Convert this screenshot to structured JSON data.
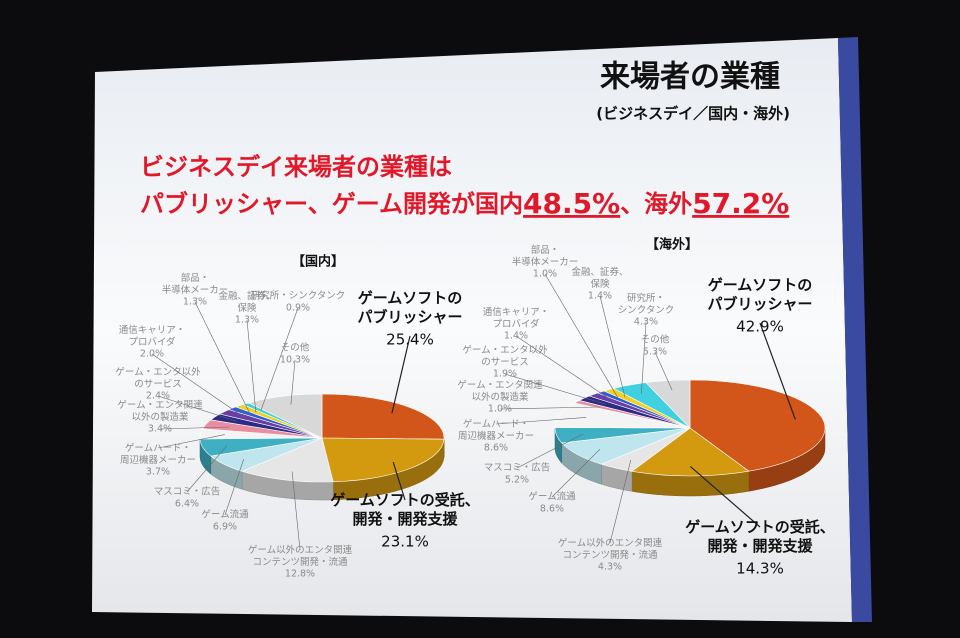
{
  "slide": {
    "title": "来場者の業種",
    "subtitle": "(ビジネスデイ／国内・海外)",
    "headline": [
      "ビジネスデイ来場者の業種は",
      "パブリッシャー、ゲーム開発が国内",
      "48.5%",
      "、海外",
      "57.2%"
    ]
  },
  "chart_data": [
    {
      "type": "pie",
      "title": "【国内】",
      "categories": [
        "ゲームソフトの\nパブリッシャー",
        "ゲームソフトの受託、\n開発・開発支援",
        "ゲーム以外のエンタ関連\nコンテンツ開発・流通",
        "ゲーム流通",
        "マスコミ・広告",
        "ゲームハード・\n周辺機器メーカー",
        "ゲーム・エンタ関連\n以外の製造業",
        "ゲーム・エンタ以外\nのサービス",
        "通信キャリア・\nプロバイダ",
        "部品・\n半導体メーカー",
        "金融、証券、\n保険",
        "研究所・シンクタンク",
        "その他"
      ],
      "values": [
        25.4,
        23.1,
        12.8,
        6.9,
        6.4,
        3.7,
        3.4,
        2.4,
        2.0,
        1.3,
        1.3,
        0.9,
        10.3
      ],
      "value_labels": [
        "25.4%",
        "23.1%",
        "12.8%",
        "6.9%",
        "6.4%",
        "3.7%",
        "3.4%",
        "2.4%",
        "2.0%",
        "1.3%",
        "1.3%",
        "0.9%",
        "10.3%"
      ],
      "colors": [
        "#d2561a",
        "#d39a10",
        "#e6e6e6",
        "#bfe6ee",
        "#3fb0c4",
        "#f4f4f4",
        "#e88ea0",
        "#2c2c84",
        "#6a3ea6",
        "#2f5fd0",
        "#f0d020",
        "#40d0e0",
        "#d8d8d8"
      ]
    },
    {
      "type": "pie",
      "title": "【海外】",
      "categories": [
        "ゲームソフトの\nパブリッシャー",
        "ゲームソフトの受託、\n開発・開発支援",
        "ゲーム以外のエンタ関連\nコンテンツ開発・流通",
        "ゲーム流通",
        "マスコミ・広告",
        "ゲームハード・\n周辺機器メーカー",
        "ゲーム・エンタ関連\n以外の製造業",
        "ゲーム・エンタ以外\nのサービス",
        "通信キャリア・\nプロバイダ",
        "部品・\n半導体メーカー",
        "金融、証券、\n保険",
        "研究所・\nシンクタンク",
        "その他"
      ],
      "values": [
        42.9,
        14.3,
        4.3,
        8.6,
        5.2,
        8.6,
        1.0,
        1.9,
        1.4,
        1.0,
        1.4,
        4.3,
        5.3
      ],
      "value_labels": [
        "42.9%",
        "14.3%",
        "4.3%",
        "8.6%",
        "5.2%",
        "8.6%",
        "1.0%",
        "1.9%",
        "1.4%",
        "1.0%",
        "1.4%",
        "4.3%",
        "5.3%"
      ],
      "colors": [
        "#d2561a",
        "#d39a10",
        "#e6e6e6",
        "#bfe6ee",
        "#3fb0c4",
        "#f4f4f4",
        "#e88ea0",
        "#2c2c84",
        "#6a3ea6",
        "#2f5fd0",
        "#f0d020",
        "#40d0e0",
        "#d8d8d8"
      ]
    }
  ]
}
